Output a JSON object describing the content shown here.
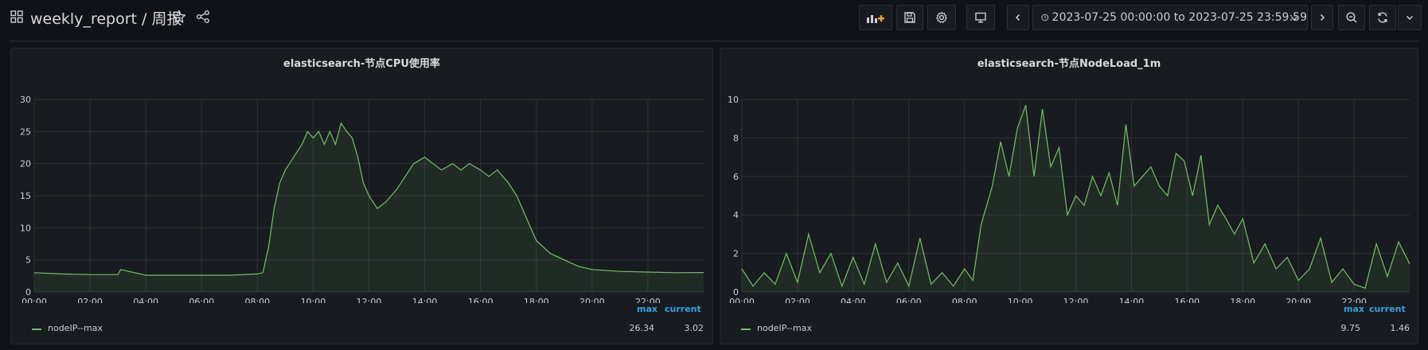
{
  "dashboard": {
    "title": "weekly_report / 周报"
  },
  "toolbar": {
    "time_range": "2023-07-25 00:00:00 to 2023-07-25 23:59:59"
  },
  "colors": {
    "series": "#73bf69",
    "legend_header": "#33a2e5",
    "background": "#111217",
    "panel": "#181b1f"
  },
  "icons": {
    "dashboard": "grid-icon",
    "star": "star-icon",
    "share": "share-icon",
    "add_panel": "add-panel-icon",
    "save": "save-icon",
    "settings": "gear-icon",
    "tv_mode": "monitor-icon",
    "time_back": "chevron-left-icon",
    "time_forward": "chevron-right-icon",
    "zoom_out": "zoom-out-icon",
    "refresh": "refresh-icon"
  },
  "panels": [
    {
      "title": "elasticsearch-节点CPU使用率",
      "legend": {
        "columns": [
          "max",
          "current"
        ],
        "series_name": "nodeIP--max",
        "max": "26.34",
        "current": "3.02"
      }
    },
    {
      "title": "elasticsearch-节点NodeLoad_1m",
      "legend": {
        "columns": [
          "max",
          "current"
        ],
        "series_name": "nodeIP--max",
        "max": "9.75",
        "current": "1.46"
      }
    }
  ],
  "chart_data": [
    {
      "type": "area",
      "title": "elasticsearch-节点CPU使用率",
      "x_tick_labels": [
        "00:00",
        "02:00",
        "04:00",
        "06:00",
        "08:00",
        "10:00",
        "12:00",
        "14:00",
        "16:00",
        "18:00",
        "20:00",
        "22:00"
      ],
      "y_tick_labels": [
        "0",
        "5",
        "10",
        "15",
        "20",
        "25",
        "30"
      ],
      "ylim": [
        0,
        30
      ],
      "xlim_hours": [
        0,
        24
      ],
      "grid": true,
      "legend_placement": "bottom",
      "series": [
        {
          "name": "nodeIP--max",
          "x": [
            0,
            1,
            2,
            3,
            3.1,
            4,
            5,
            6,
            7,
            8,
            8.2,
            8.4,
            8.6,
            8.8,
            9,
            9.3,
            9.6,
            9.8,
            10,
            10.2,
            10.4,
            10.6,
            10.8,
            11,
            11.2,
            11.4,
            11.6,
            11.8,
            12,
            12.3,
            12.6,
            13,
            13.3,
            13.6,
            14,
            14.3,
            14.6,
            15,
            15.3,
            15.6,
            16,
            16.3,
            16.6,
            17,
            17.3,
            17.6,
            18,
            18.5,
            19,
            19.5,
            20,
            21,
            22,
            23,
            24
          ],
          "values": [
            3.0,
            2.8,
            2.7,
            2.7,
            3.5,
            2.6,
            2.6,
            2.6,
            2.6,
            2.8,
            3.0,
            7,
            13,
            17,
            19,
            21,
            23,
            25,
            24,
            25,
            23,
            25,
            23,
            26.3,
            25,
            24,
            21,
            17,
            15,
            13,
            14,
            16,
            18,
            20,
            21,
            20,
            19,
            20,
            19,
            20,
            19,
            18,
            19,
            17,
            15,
            12,
            8,
            6,
            5,
            4,
            3.5,
            3.2,
            3.1,
            3.0,
            3.02
          ]
        }
      ]
    },
    {
      "type": "line",
      "title": "elasticsearch-节点NodeLoad_1m",
      "x_tick_labels": [
        "00:00",
        "02:00",
        "04:00",
        "06:00",
        "08:00",
        "10:00",
        "12:00",
        "14:00",
        "16:00",
        "18:00",
        "20:00",
        "22:00"
      ],
      "y_tick_labels": [
        "0",
        "2",
        "4",
        "6",
        "8",
        "10"
      ],
      "ylim": [
        0,
        10
      ],
      "xlim_hours": [
        0,
        24
      ],
      "grid": true,
      "legend_placement": "bottom",
      "series": [
        {
          "name": "nodeIP--max",
          "x": [
            0,
            0.4,
            0.8,
            1.2,
            1.6,
            2,
            2.4,
            2.8,
            3.2,
            3.6,
            4,
            4.4,
            4.8,
            5.2,
            5.6,
            6,
            6.4,
            6.8,
            7.2,
            7.6,
            8,
            8.3,
            8.6,
            9,
            9.3,
            9.6,
            9.9,
            10.2,
            10.5,
            10.8,
            11.1,
            11.4,
            11.7,
            12,
            12.3,
            12.6,
            12.9,
            13.2,
            13.5,
            13.8,
            14.1,
            14.4,
            14.7,
            15,
            15.3,
            15.6,
            15.9,
            16.2,
            16.5,
            16.8,
            17.1,
            17.4,
            17.7,
            18,
            18.4,
            18.8,
            19.2,
            19.6,
            20,
            20.4,
            20.8,
            21.2,
            21.6,
            22,
            22.4,
            22.8,
            23.2,
            23.6,
            24
          ],
          "values": [
            1.2,
            0.3,
            1.0,
            0.4,
            2.0,
            0.5,
            3.0,
            1.0,
            2.0,
            0.3,
            1.8,
            0.4,
            2.5,
            0.5,
            1.5,
            0.3,
            2.8,
            0.4,
            1.0,
            0.3,
            1.2,
            0.6,
            3.5,
            5.5,
            7.8,
            6.0,
            8.5,
            9.7,
            6.0,
            9.5,
            6.5,
            7.5,
            4.0,
            5.0,
            4.5,
            6.0,
            5.0,
            6.2,
            4.5,
            8.7,
            5.5,
            6.0,
            6.5,
            5.5,
            5.0,
            7.2,
            6.8,
            5.0,
            7.1,
            3.5,
            4.5,
            3.8,
            3.0,
            3.8,
            1.5,
            2.5,
            1.2,
            1.8,
            0.6,
            1.2,
            2.8,
            0.5,
            1.2,
            0.4,
            0.2,
            2.5,
            0.8,
            2.6,
            1.46
          ]
        }
      ]
    }
  ]
}
